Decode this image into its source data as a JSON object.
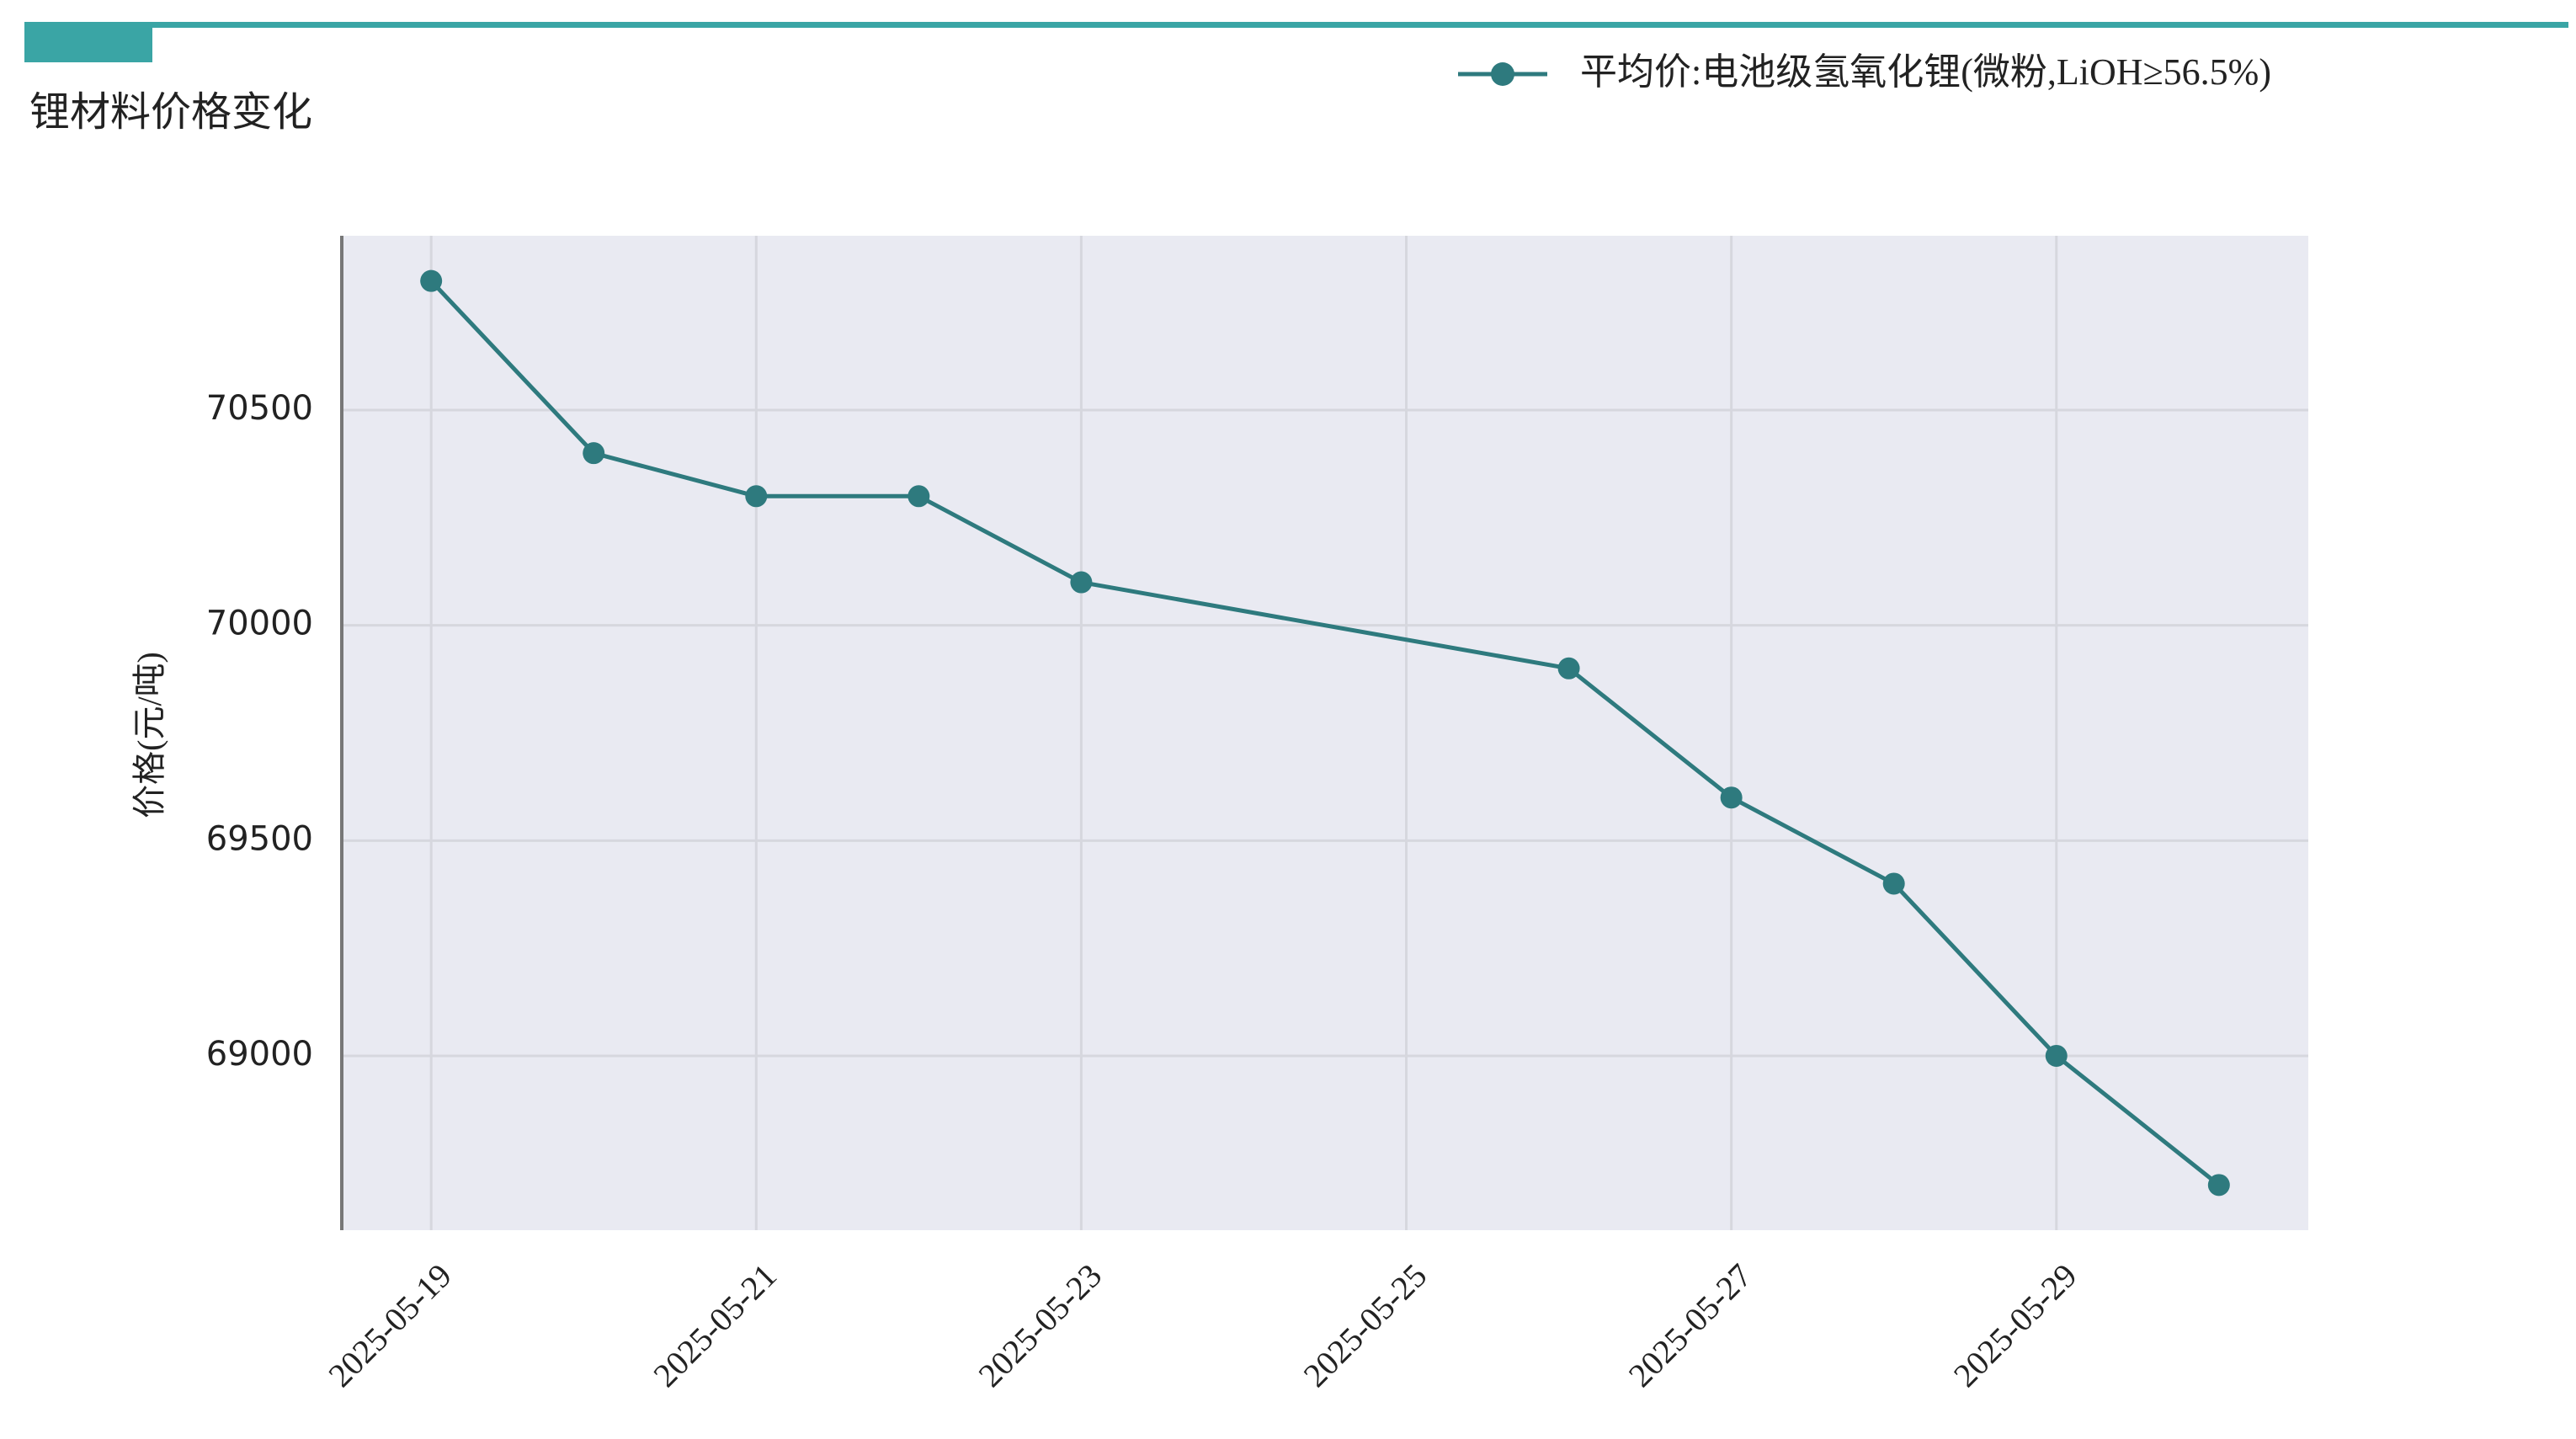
{
  "chart_data": {
    "type": "line",
    "title": "锂材料价格变化",
    "y_label": "价格(元/吨)",
    "x": [
      "2025-05-19",
      "2025-05-20",
      "2025-05-21",
      "2025-05-22",
      "2025-05-23",
      "2025-05-26",
      "2025-05-27",
      "2025-05-28",
      "2025-05-29",
      "2025-05-30"
    ],
    "series": [
      {
        "name": "平均价:电池级氢氧化锂(微粉,LiOH≥56.5%)",
        "color": "#2e7a7e",
        "values": [
          70800,
          70400,
          70300,
          70300,
          70100,
          69900,
          69600,
          69400,
          69000,
          68700
        ]
      }
    ],
    "xticks": [
      "2025-05-19",
      "2025-05-21",
      "2025-05-23",
      "2025-05-25",
      "2025-05-27",
      "2025-05-29"
    ],
    "ylim": [
      68595,
      70905
    ],
    "yticks": [
      69000,
      69500,
      70000,
      70500
    ],
    "grid": true,
    "legend": "top-right"
  }
}
